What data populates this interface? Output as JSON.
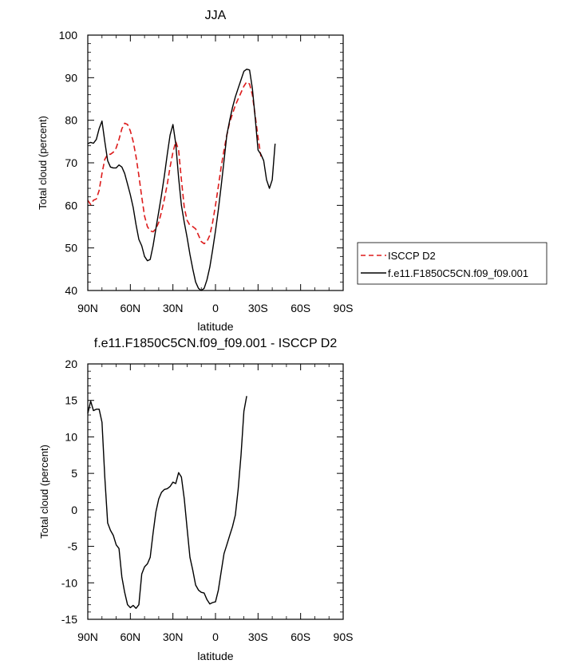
{
  "chart_data": [
    {
      "type": "line",
      "title": "JJA",
      "xlabel": "latitude",
      "ylabel": "Total cloud (percent)",
      "xlim": [
        90,
        -90
      ],
      "ylim": [
        40,
        100
      ],
      "x_ticks": [
        {
          "value": 90,
          "label": "90N"
        },
        {
          "value": 60,
          "label": "60N"
        },
        {
          "value": 30,
          "label": "30N"
        },
        {
          "value": 0,
          "label": "0"
        },
        {
          "value": -30,
          "label": "30S"
        },
        {
          "value": -60,
          "label": "60S"
        },
        {
          "value": -90,
          "label": "90S"
        }
      ],
      "y_ticks": [
        40,
        50,
        60,
        70,
        80,
        90,
        100
      ],
      "legend_position": "right",
      "series": [
        {
          "name": "ISCCP D2",
          "color": "#dd1c1c",
          "dash": "dashed",
          "points": [
            [
              90,
              61.2
            ],
            [
              88,
              60.2
            ],
            [
              86,
              61.2
            ],
            [
              84,
              61.5
            ],
            [
              82,
              63.5
            ],
            [
              80,
              67.5
            ],
            [
              78,
              70.8
            ],
            [
              76,
              72.0
            ],
            [
              74,
              72.0
            ],
            [
              72,
              72.5
            ],
            [
              70,
              73.5
            ],
            [
              68,
              75.5
            ],
            [
              66,
              78.0
            ],
            [
              64,
              79.3
            ],
            [
              62,
              79.0
            ],
            [
              60,
              77.5
            ],
            [
              58,
              75.0
            ],
            [
              56,
              71.5
            ],
            [
              54,
              67.0
            ],
            [
              52,
              62.0
            ],
            [
              50,
              57.5
            ],
            [
              48,
              55.0
            ],
            [
              46,
              54.0
            ],
            [
              44,
              53.8
            ],
            [
              42,
              54.5
            ],
            [
              40,
              56.0
            ],
            [
              38,
              58.5
            ],
            [
              36,
              61.5
            ],
            [
              34,
              65.0
            ],
            [
              32,
              69.0
            ],
            [
              30,
              72.5
            ],
            [
              28,
              75.0
            ],
            [
              26,
              73.0
            ],
            [
              24,
              66.0
            ],
            [
              22,
              59.5
            ],
            [
              20,
              56.5
            ],
            [
              18,
              55.3
            ],
            [
              16,
              55.0
            ],
            [
              14,
              54.5
            ],
            [
              12,
              53.0
            ],
            [
              10,
              51.5
            ],
            [
              8,
              51.0
            ],
            [
              6,
              51.5
            ],
            [
              4,
              53.0
            ],
            [
              2,
              56.0
            ],
            [
              0,
              60.0
            ],
            [
              -2,
              64.5
            ],
            [
              -4,
              69.0
            ],
            [
              -6,
              73.0
            ],
            [
              -8,
              76.5
            ],
            [
              -10,
              79.5
            ],
            [
              -12,
              81.5
            ],
            [
              -14,
              83.5
            ],
            [
              -16,
              85.0
            ],
            [
              -18,
              86.5
            ],
            [
              -20,
              88.0
            ],
            [
              -22,
              89.0
            ],
            [
              -24,
              88.5
            ],
            [
              -26,
              86.0
            ],
            [
              -28,
              81.0
            ],
            [
              -30,
              76.0
            ],
            [
              -32,
              71.5
            ]
          ]
        },
        {
          "name": "f.e11.F1850C5CN.f09_f09.001",
          "color": "#000000",
          "dash": "solid",
          "points": [
            [
              90,
              74.5
            ],
            [
              88,
              74.8
            ],
            [
              86,
              74.6
            ],
            [
              84,
              75.5
            ],
            [
              82,
              78.0
            ],
            [
              80,
              79.8
            ],
            [
              78,
              75.0
            ],
            [
              76,
              70.5
            ],
            [
              74,
              69.0
            ],
            [
              72,
              68.8
            ],
            [
              70,
              68.8
            ],
            [
              68,
              69.5
            ],
            [
              66,
              69.0
            ],
            [
              64,
              67.5
            ],
            [
              62,
              65.0
            ],
            [
              60,
              62.5
            ],
            [
              58,
              59.5
            ],
            [
              56,
              55.5
            ],
            [
              54,
              52.0
            ],
            [
              52,
              50.5
            ],
            [
              50,
              48.0
            ],
            [
              48,
              47.0
            ],
            [
              46,
              47.3
            ],
            [
              44,
              50.5
            ],
            [
              42,
              54.5
            ],
            [
              40,
              58.5
            ],
            [
              38,
              62.5
            ],
            [
              36,
              67.0
            ],
            [
              34,
              72.0
            ],
            [
              32,
              76.5
            ],
            [
              30,
              79.0
            ],
            [
              28,
              74.5
            ],
            [
              26,
              66.5
            ],
            [
              24,
              60.0
            ],
            [
              22,
              56.0
            ],
            [
              20,
              52.5
            ],
            [
              18,
              48.5
            ],
            [
              16,
              45.0
            ],
            [
              14,
              42.0
            ],
            [
              12,
              40.5
            ],
            [
              10,
              40.0
            ],
            [
              8,
              40.5
            ],
            [
              6,
              42.5
            ],
            [
              4,
              45.5
            ],
            [
              2,
              49.5
            ],
            [
              0,
              54.0
            ],
            [
              -2,
              59.0
            ],
            [
              -4,
              64.5
            ],
            [
              -6,
              70.5
            ],
            [
              -8,
              76.5
            ],
            [
              -10,
              80.0
            ],
            [
              -12,
              83.0
            ],
            [
              -14,
              85.5
            ],
            [
              -16,
              87.5
            ],
            [
              -18,
              89.5
            ],
            [
              -20,
              91.5
            ],
            [
              -22,
              92.0
            ],
            [
              -24,
              91.8
            ],
            [
              -26,
              87.5
            ],
            [
              -28,
              80.5
            ],
            [
              -30,
              73.0
            ],
            [
              -32,
              72.0
            ],
            [
              -34,
              70.5
            ],
            [
              -36,
              66.0
            ],
            [
              -38,
              64.0
            ],
            [
              -40,
              66.0
            ],
            [
              -42,
              74.5
            ]
          ]
        }
      ]
    },
    {
      "type": "line",
      "title": "f.e11.F1850C5CN.f09_f09.001 - ISCCP D2",
      "xlabel": "latitude",
      "ylabel": "Total cloud (percent)",
      "xlim": [
        90,
        -90
      ],
      "ylim": [
        -15,
        20
      ],
      "x_ticks": [
        {
          "value": 90,
          "label": "90N"
        },
        {
          "value": 60,
          "label": "60N"
        },
        {
          "value": 30,
          "label": "30N"
        },
        {
          "value": 0,
          "label": "0"
        },
        {
          "value": -30,
          "label": "30S"
        },
        {
          "value": -60,
          "label": "60S"
        },
        {
          "value": -90,
          "label": "90S"
        }
      ],
      "y_ticks": [
        -15,
        -10,
        -5,
        0,
        5,
        10,
        15,
        20
      ],
      "series": [
        {
          "color": "#000000",
          "dash": "solid",
          "points": [
            [
              90,
              13.2
            ],
            [
              88,
              14.9
            ],
            [
              86,
              13.6
            ],
            [
              84,
              13.8
            ],
            [
              82,
              13.8
            ],
            [
              80,
              12.0
            ],
            [
              78,
              4.5
            ],
            [
              76,
              -1.8
            ],
            [
              74,
              -2.8
            ],
            [
              72,
              -3.5
            ],
            [
              70,
              -4.8
            ],
            [
              68,
              -5.3
            ],
            [
              66,
              -9.2
            ],
            [
              64,
              -11.3
            ],
            [
              62,
              -13.0
            ],
            [
              60,
              -13.4
            ],
            [
              58,
              -13.1
            ],
            [
              56,
              -13.5
            ],
            [
              54,
              -13.0
            ],
            [
              52,
              -8.8
            ],
            [
              50,
              -7.8
            ],
            [
              48,
              -7.4
            ],
            [
              46,
              -6.5
            ],
            [
              44,
              -3.2
            ],
            [
              42,
              -0.3
            ],
            [
              40,
              1.5
            ],
            [
              38,
              2.4
            ],
            [
              36,
              2.8
            ],
            [
              34,
              2.9
            ],
            [
              32,
              3.2
            ],
            [
              30,
              3.8
            ],
            [
              28,
              3.6
            ],
            [
              26,
              5.1
            ],
            [
              24,
              4.5
            ],
            [
              22,
              1.5
            ],
            [
              20,
              -2.5
            ],
            [
              18,
              -6.5
            ],
            [
              16,
              -8.3
            ],
            [
              14,
              -10.3
            ],
            [
              12,
              -11.0
            ],
            [
              10,
              -11.3
            ],
            [
              8,
              -11.4
            ],
            [
              6,
              -12.3
            ],
            [
              4,
              -12.9
            ],
            [
              2,
              -12.7
            ],
            [
              0,
              -12.6
            ],
            [
              -2,
              -11.0
            ],
            [
              -4,
              -8.5
            ],
            [
              -6,
              -6.0
            ],
            [
              -8,
              -4.8
            ],
            [
              -10,
              -3.5
            ],
            [
              -12,
              -2.3
            ],
            [
              -14,
              -0.7
            ],
            [
              -16,
              2.8
            ],
            [
              -18,
              7.5
            ],
            [
              -20,
              13.5
            ],
            [
              -22,
              15.6
            ]
          ]
        }
      ]
    }
  ]
}
